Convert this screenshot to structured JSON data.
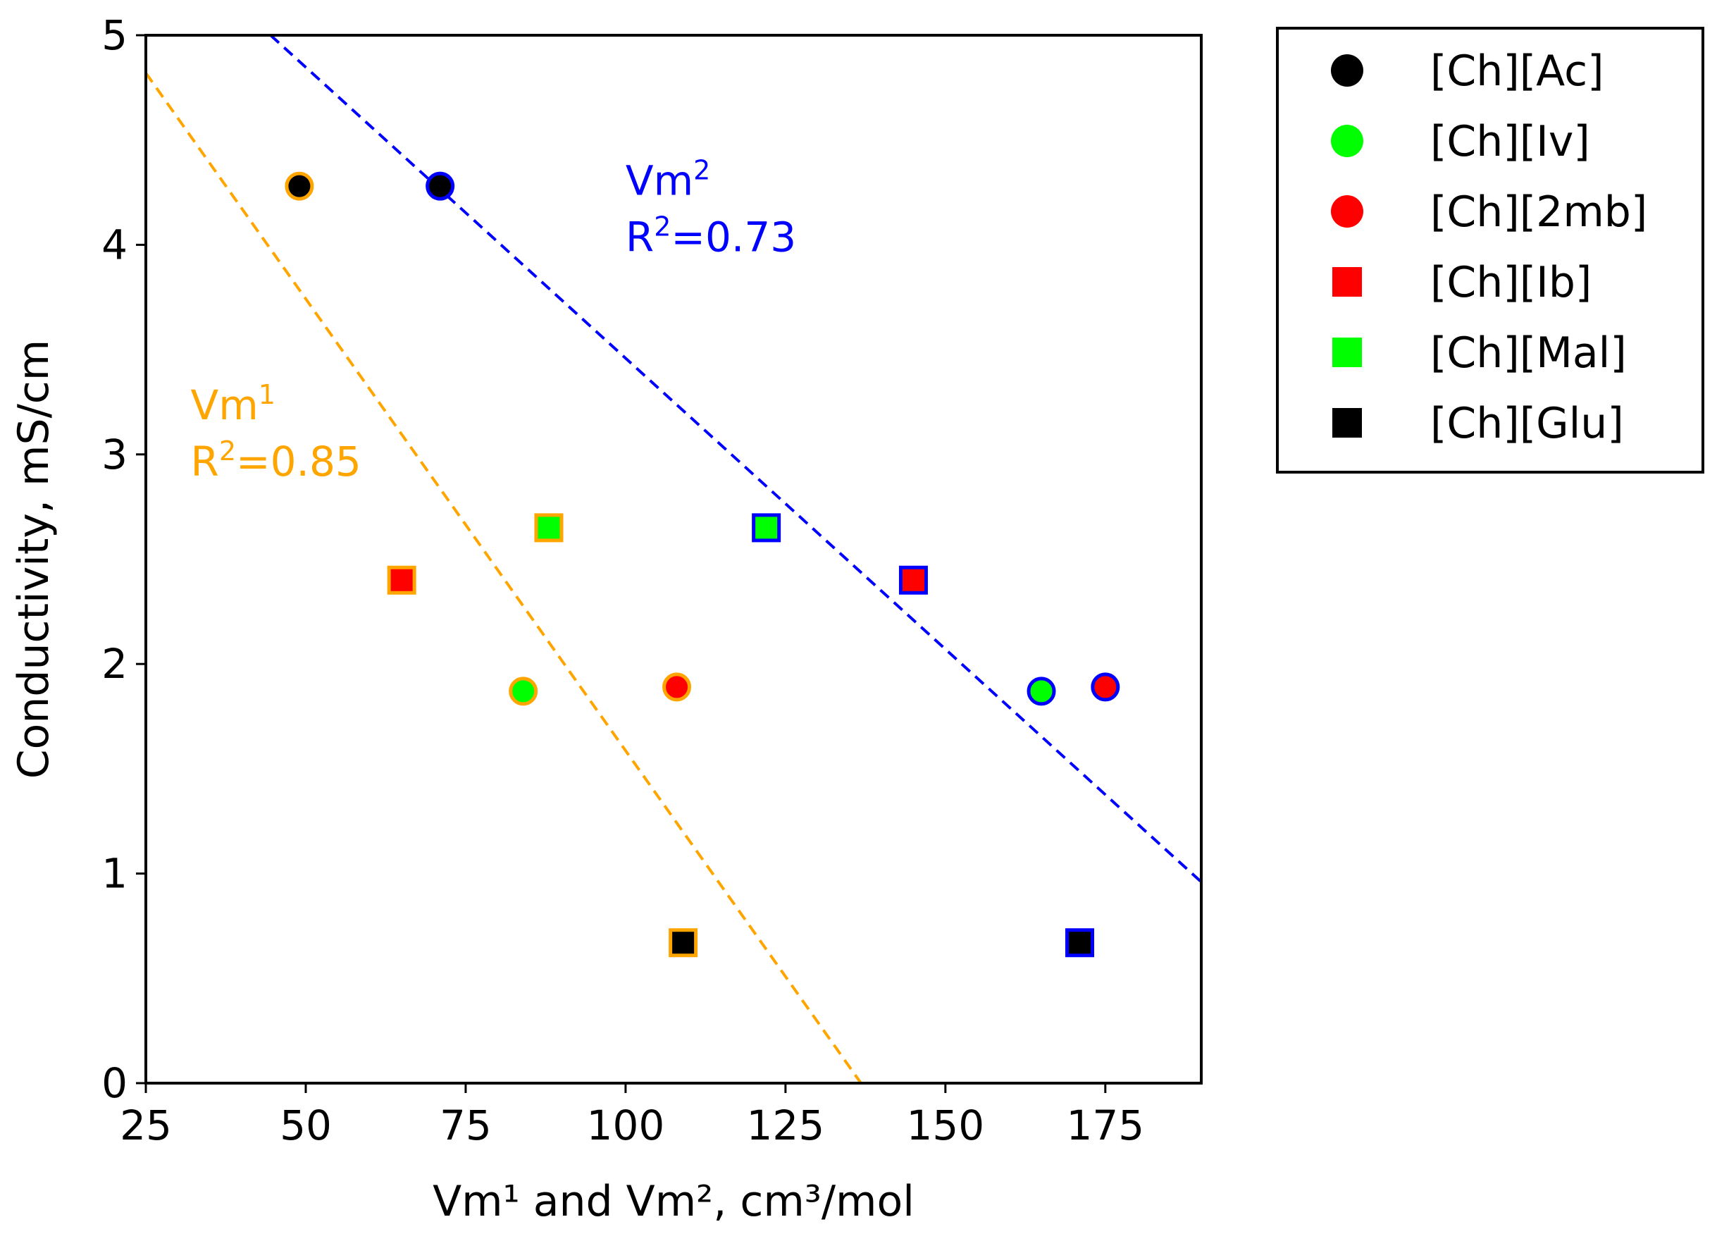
{
  "chart_data": {
    "type": "scatter",
    "xlabel": "Vm¹ and Vm², cm³/mol",
    "ylabel": "Conductivity, mS/cm",
    "xlim": [
      25,
      190
    ],
    "ylim": [
      0,
      5
    ],
    "xticks": [
      25,
      50,
      75,
      100,
      125,
      150,
      175
    ],
    "yticks": [
      0,
      1,
      2,
      3,
      4,
      5
    ],
    "grid": false,
    "legend_position": "outside-right",
    "legend": [
      {
        "label": "[Ch][Ac]",
        "marker": "circle",
        "fill": "#000000"
      },
      {
        "label": "[Ch][Iv]",
        "marker": "circle",
        "fill": "#00ff00"
      },
      {
        "label": "[Ch][2mb]",
        "marker": "circle",
        "fill": "#ff0000"
      },
      {
        "label": "[Ch][Ib]",
        "marker": "square",
        "fill": "#ff0000"
      },
      {
        "label": "[Ch][Mal]",
        "marker": "square",
        "fill": "#00ff00"
      },
      {
        "label": "[Ch][Glu]",
        "marker": "square",
        "fill": "#000000"
      }
    ],
    "series": [
      {
        "name": "Vm1",
        "edge_color": "#ffa500",
        "points": [
          {
            "label": "[Ch][Ac]",
            "x": 49,
            "y": 4.28
          },
          {
            "label": "[Ch][Iv]",
            "x": 84,
            "y": 1.87
          },
          {
            "label": "[Ch][2mb]",
            "x": 108,
            "y": 1.89
          },
          {
            "label": "[Ch][Ib]",
            "x": 65,
            "y": 2.4
          },
          {
            "label": "[Ch][Mal]",
            "x": 88,
            "y": 2.65
          },
          {
            "label": "[Ch][Glu]",
            "x": 109,
            "y": 0.67
          }
        ],
        "fit": {
          "color": "#ffa500",
          "x0": 25,
          "y0": 4.82,
          "x1": 136.8,
          "y1": 0.0
        },
        "annotation": {
          "name_base": "Vm",
          "name_sup": "1",
          "r2_base": "R",
          "r2_sup": "2",
          "r2_value": "=0.85",
          "x": 32,
          "y": 3.0
        }
      },
      {
        "name": "Vm2",
        "edge_color": "#0000ff",
        "points": [
          {
            "label": "[Ch][Ac]",
            "x": 71,
            "y": 4.28
          },
          {
            "label": "[Ch][Iv]",
            "x": 165,
            "y": 1.87
          },
          {
            "label": "[Ch][2mb]",
            "x": 175,
            "y": 1.89
          },
          {
            "label": "[Ch][Ib]",
            "x": 145,
            "y": 2.4
          },
          {
            "label": "[Ch][Mal]",
            "x": 122,
            "y": 2.65
          },
          {
            "label": "[Ch][Glu]",
            "x": 171,
            "y": 0.67
          }
        ],
        "fit": {
          "color": "#0000ff",
          "x0": 44.5,
          "y0": 5.0,
          "x1": 190,
          "y1": 0.96
        },
        "annotation": {
          "name_base": "Vm",
          "name_sup": "2",
          "r2_base": "R",
          "r2_sup": "2",
          "r2_value": "=0.73",
          "x": 100,
          "y": 4.07
        }
      }
    ]
  }
}
